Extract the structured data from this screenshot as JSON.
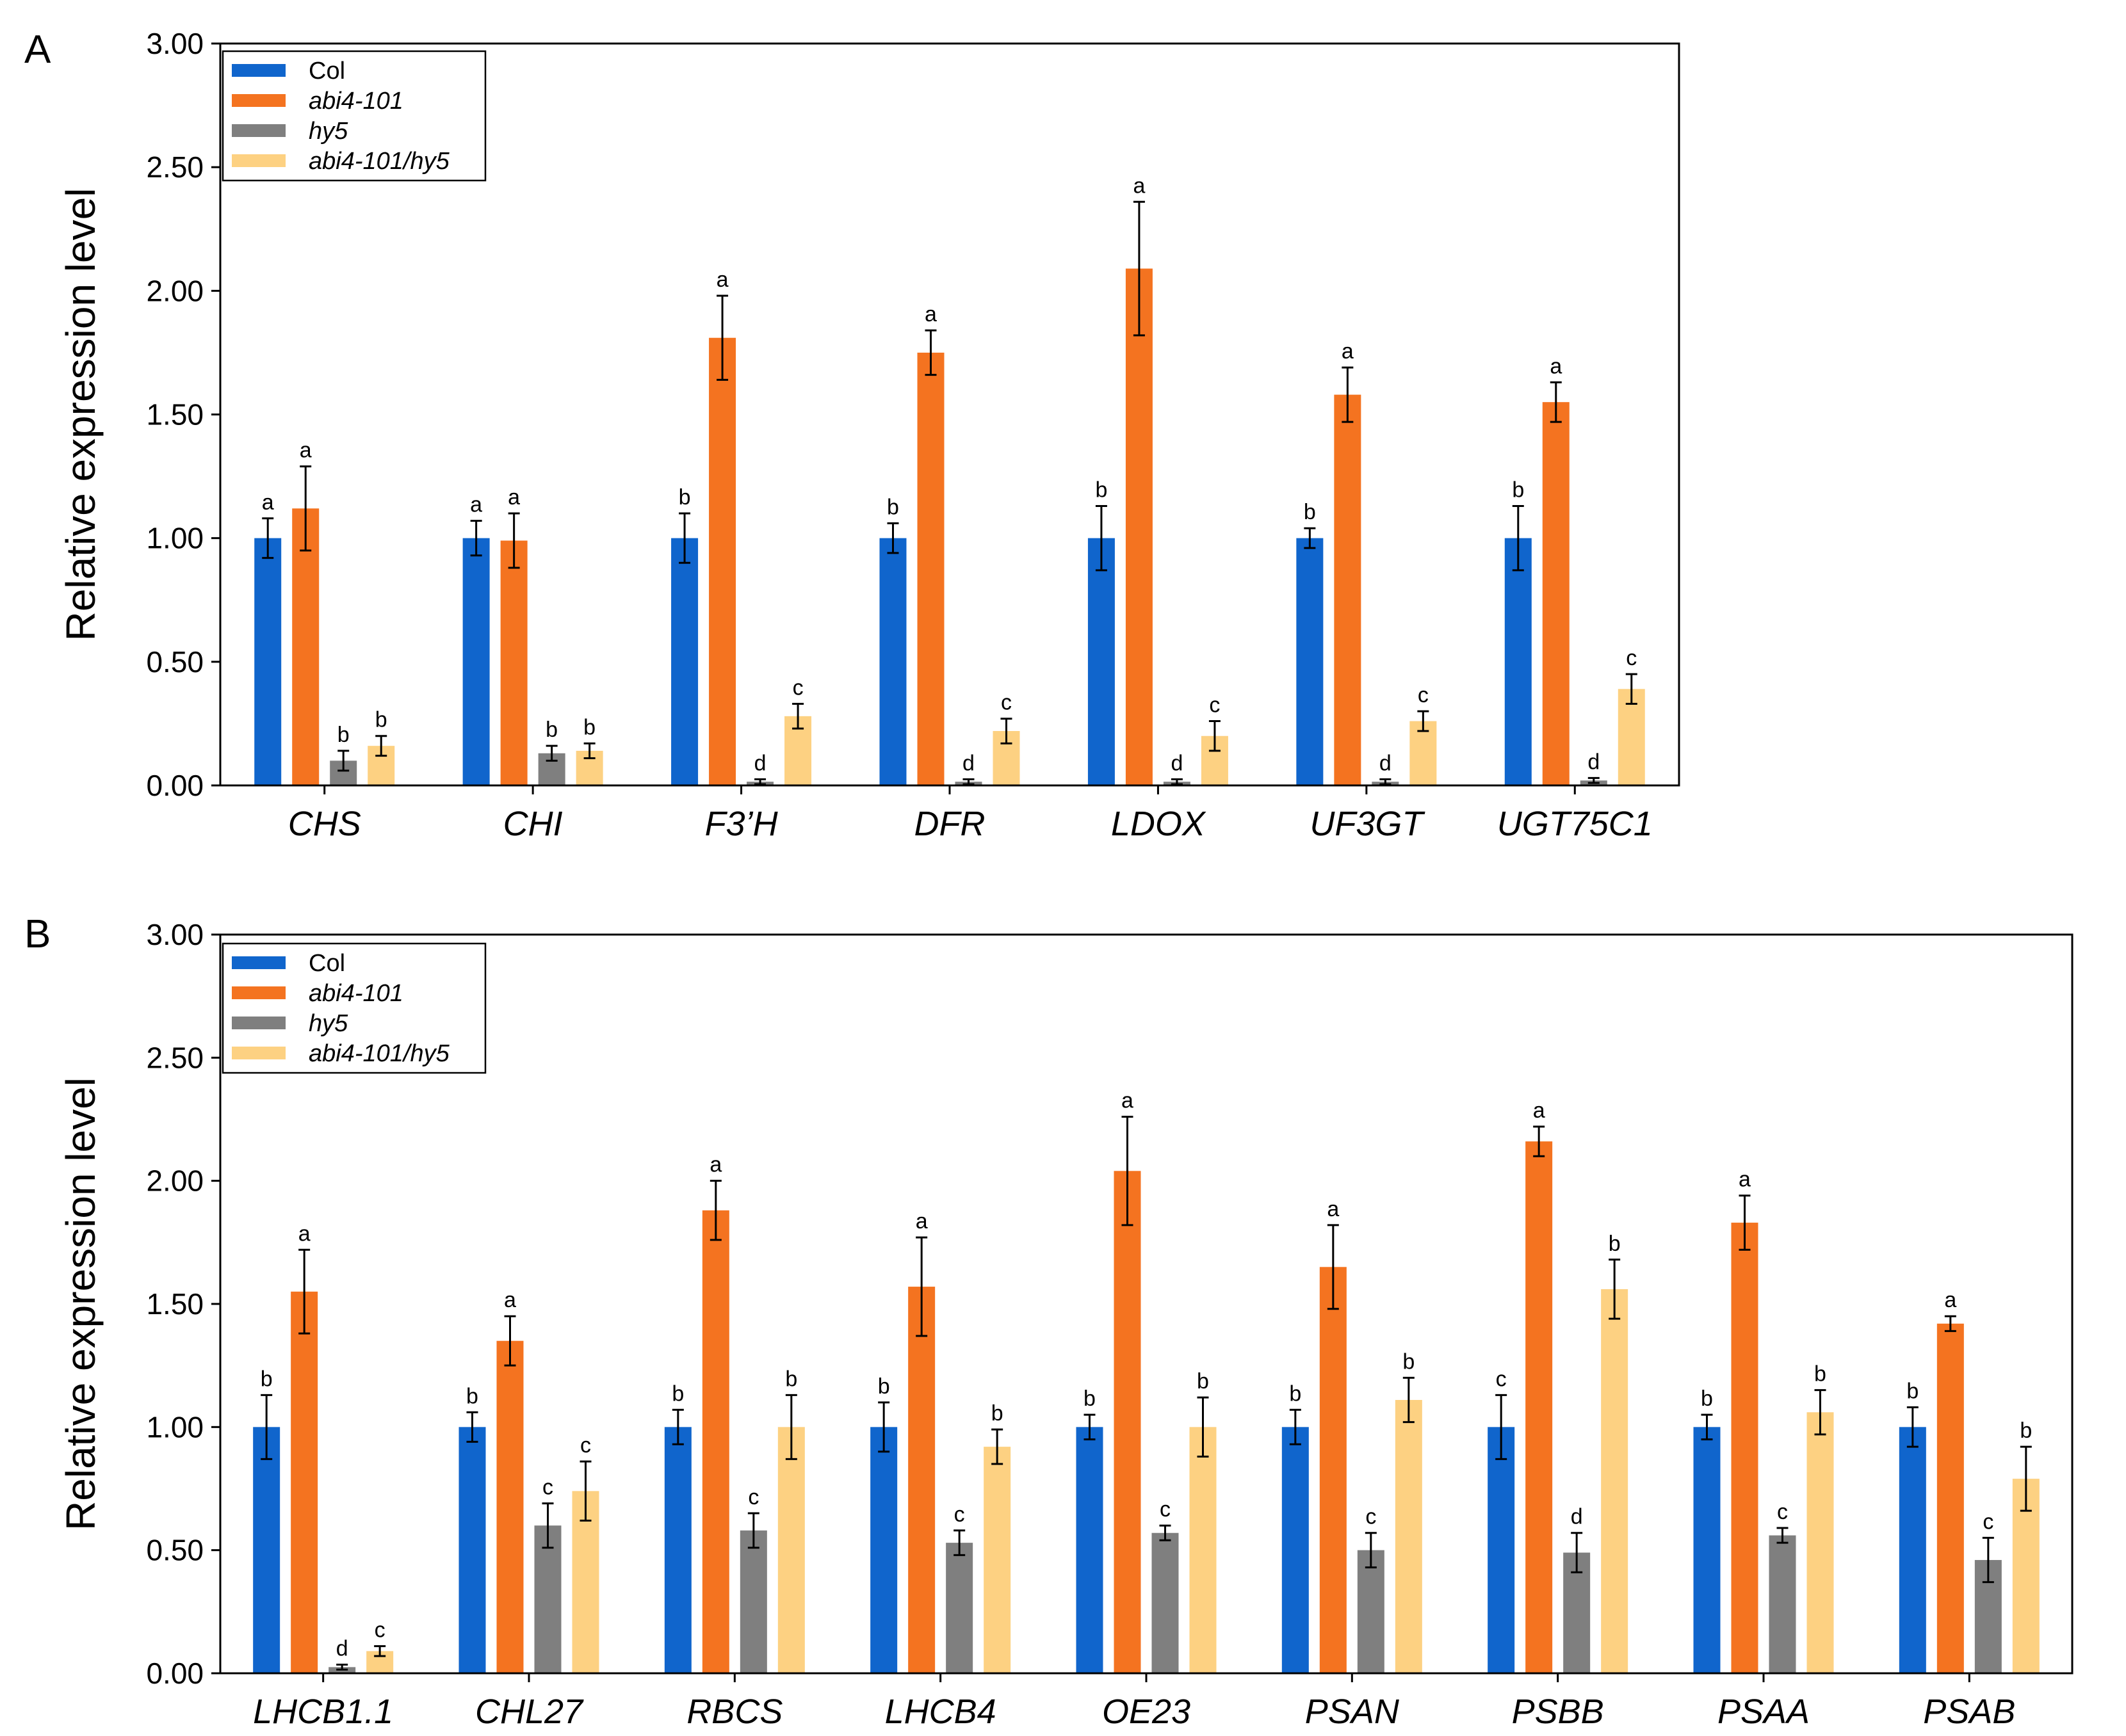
{
  "series_styles": [
    {
      "name": "Col",
      "color": "#1065cc",
      "italic": false
    },
    {
      "name": "abi4-101",
      "color": "#f47320",
      "italic": true
    },
    {
      "name": "hy5",
      "color": "#7f7f7f",
      "italic": true
    },
    {
      "name": "abi4-101/hy5",
      "color": "#fdd182",
      "italic": true
    }
  ],
  "chart_data": [
    {
      "type": "bar",
      "panel_label": "A",
      "ylabel": "Relative expression level",
      "ylim": [
        0,
        3
      ],
      "yticks": [
        "0.00",
        "0.50",
        "1.00",
        "1.50",
        "2.00",
        "2.50",
        "3.00"
      ],
      "legend_position": "top-left",
      "categories": [
        "CHS",
        "CHI",
        "F3’H",
        "DFR",
        "LDOX",
        "UF3GT",
        "UGT75C1"
      ],
      "series": [
        {
          "name": "Col",
          "values": [
            1.0,
            1.0,
            1.0,
            1.0,
            1.0,
            1.0,
            1.0
          ],
          "errors": [
            0.08,
            0.07,
            0.1,
            0.06,
            0.13,
            0.04,
            0.13
          ],
          "letters": [
            "a",
            "a",
            "b",
            "b",
            "b",
            "b",
            "b"
          ]
        },
        {
          "name": "abi4-101",
          "values": [
            1.12,
            0.99,
            1.81,
            1.75,
            2.09,
            1.58,
            1.55
          ],
          "errors": [
            0.17,
            0.11,
            0.17,
            0.09,
            0.27,
            0.11,
            0.08
          ],
          "letters": [
            "a",
            "a",
            "a",
            "a",
            "a",
            "a",
            "a"
          ]
        },
        {
          "name": "hy5",
          "values": [
            0.1,
            0.13,
            0.015,
            0.015,
            0.015,
            0.015,
            0.02
          ],
          "errors": [
            0.04,
            0.03,
            0.01,
            0.01,
            0.01,
            0.01,
            0.01
          ],
          "letters": [
            "b",
            "b",
            "d",
            "d",
            "d",
            "d",
            "d"
          ]
        },
        {
          "name": "abi4-101/hy5",
          "values": [
            0.16,
            0.14,
            0.28,
            0.22,
            0.2,
            0.26,
            0.39
          ],
          "errors": [
            0.04,
            0.03,
            0.05,
            0.05,
            0.06,
            0.04,
            0.06
          ],
          "letters": [
            "b",
            "b",
            "c",
            "c",
            "c",
            "c",
            "c"
          ]
        }
      ]
    },
    {
      "type": "bar",
      "panel_label": "B",
      "ylabel": "Relative expression level",
      "ylim": [
        0,
        3
      ],
      "yticks": [
        "0.00",
        "0.50",
        "1.00",
        "1.50",
        "2.00",
        "2.50",
        "3.00"
      ],
      "legend_position": "top-left",
      "categories": [
        "LHCB1.1",
        "CHL27",
        "RBCS",
        "LHCB4",
        "OE23",
        "PSAN",
        "PSBB",
        "PSAA",
        "PSAB"
      ],
      "series": [
        {
          "name": "Col",
          "values": [
            1.0,
            1.0,
            1.0,
            1.0,
            1.0,
            1.0,
            1.0,
            1.0,
            1.0
          ],
          "errors": [
            0.13,
            0.06,
            0.07,
            0.1,
            0.05,
            0.07,
            0.13,
            0.05,
            0.08
          ],
          "letters": [
            "b",
            "b",
            "b",
            "b",
            "b",
            "b",
            "c",
            "b",
            "b"
          ]
        },
        {
          "name": "abi4-101",
          "values": [
            1.55,
            1.35,
            1.88,
            1.57,
            2.04,
            1.65,
            2.16,
            1.83,
            1.42
          ],
          "errors": [
            0.17,
            0.1,
            0.12,
            0.2,
            0.22,
            0.17,
            0.06,
            0.11,
            0.03
          ],
          "letters": [
            "a",
            "a",
            "a",
            "a",
            "a",
            "a",
            "a",
            "a",
            "a"
          ]
        },
        {
          "name": "hy5",
          "values": [
            0.025,
            0.6,
            0.58,
            0.53,
            0.57,
            0.5,
            0.49,
            0.56,
            0.46
          ],
          "errors": [
            0.01,
            0.09,
            0.07,
            0.05,
            0.03,
            0.07,
            0.08,
            0.03,
            0.09
          ],
          "letters": [
            "d",
            "c",
            "c",
            "c",
            "c",
            "c",
            "d",
            "c",
            "c"
          ]
        },
        {
          "name": "abi4-101/hy5",
          "values": [
            0.09,
            0.74,
            1.0,
            0.92,
            1.0,
            1.11,
            1.56,
            1.06,
            0.79
          ],
          "errors": [
            0.02,
            0.12,
            0.13,
            0.07,
            0.12,
            0.09,
            0.12,
            0.09,
            0.13
          ],
          "letters": [
            "c",
            "c",
            "b",
            "b",
            "b",
            "b",
            "b",
            "b",
            "b"
          ]
        }
      ]
    }
  ]
}
